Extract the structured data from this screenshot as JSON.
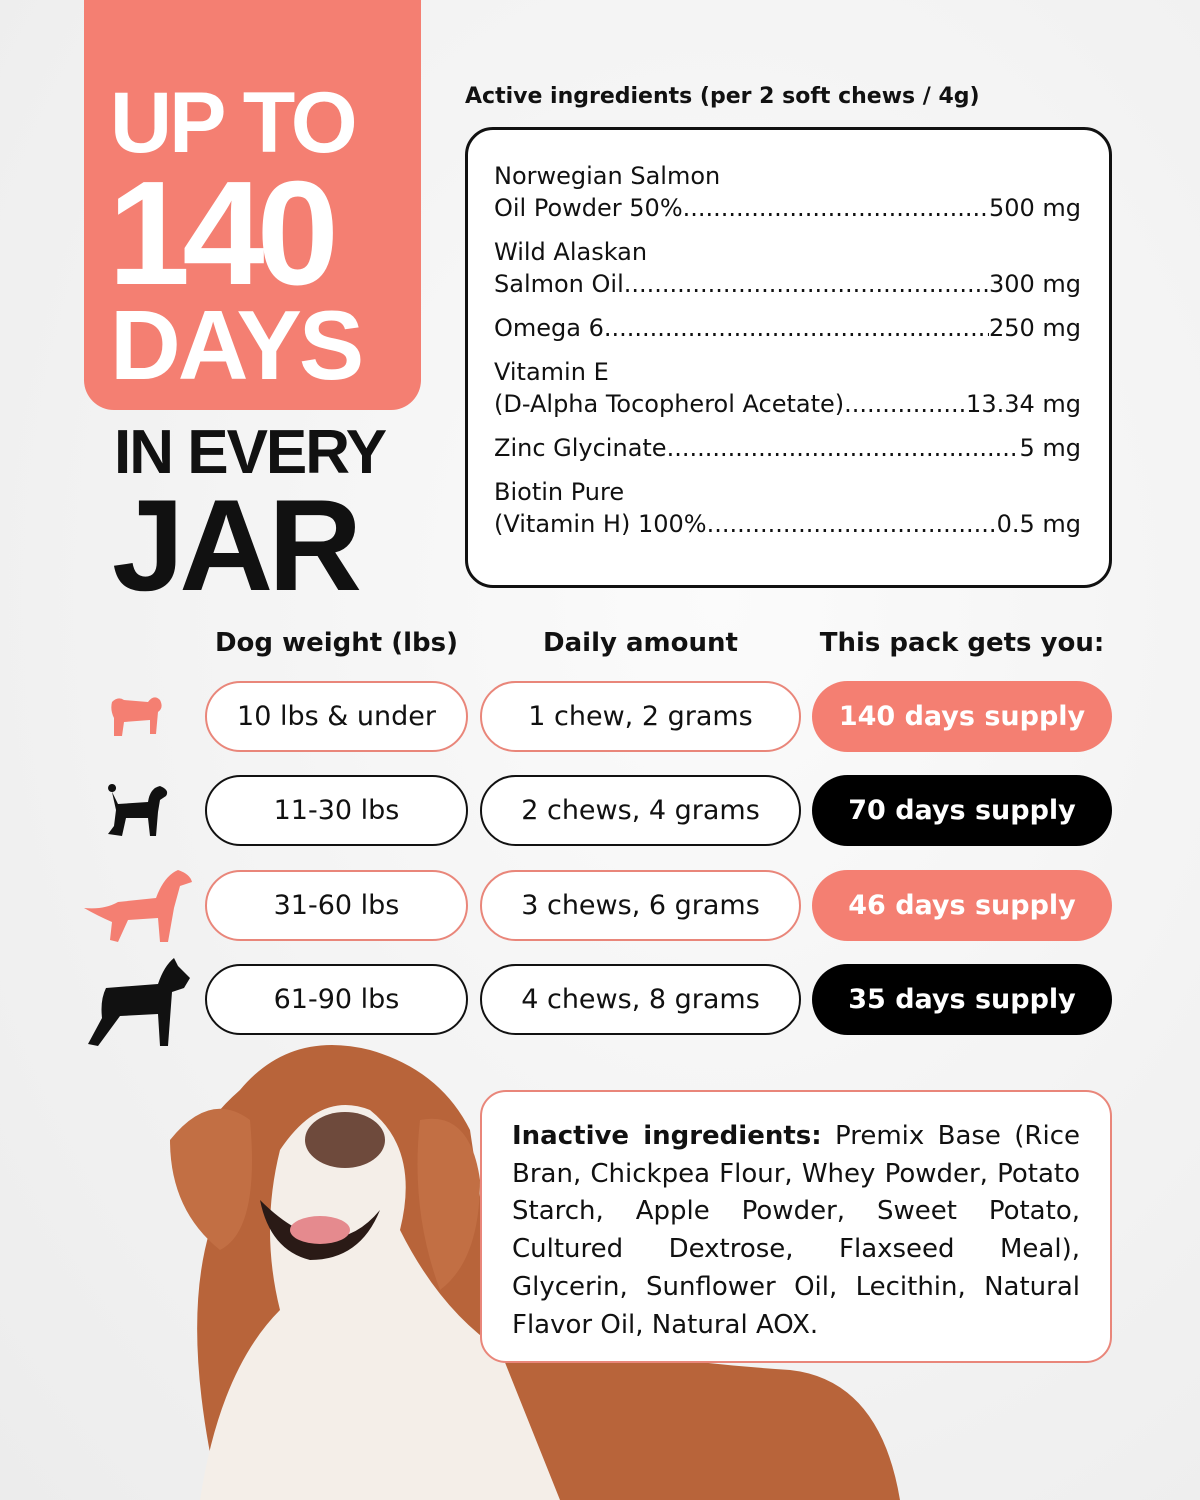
{
  "hero": {
    "line1": "UP TO",
    "number": "140",
    "line3": "DAYS",
    "line4": "IN EVERY",
    "line5": "JAR"
  },
  "active": {
    "heading": "Active ingredients (per 2 soft chews / 4g)",
    "items": [
      {
        "line1": "Norwegian Salmon",
        "line2": "Oil Powder 50%",
        "amount": "500 mg"
      },
      {
        "line1": "Wild Alaskan",
        "line2": "Salmon Oil",
        "amount": "300 mg"
      },
      {
        "line1": "",
        "line2": "Omega 6",
        "amount": "250 mg"
      },
      {
        "line1": "Vitamin E",
        "line2": "(D-Alpha Tocopherol Acetate)",
        "amount": "13.34 mg"
      },
      {
        "line1": "",
        "line2": "Zinc Glycinate",
        "amount": "5 mg"
      },
      {
        "line1": "Biotin Pure",
        "line2": "(Vitamin H) 100%",
        "amount": "0.5 mg"
      }
    ]
  },
  "table": {
    "headers": [
      "Dog weight (lbs)",
      "Daily amount",
      "This pack gets you:"
    ],
    "rows": [
      {
        "icon": "pug-silhouette-icon",
        "weight": "10 lbs & under",
        "amount": "1 chew, 2 grams",
        "supply": "140 days supply",
        "color": "#F47F72"
      },
      {
        "icon": "poodle-silhouette-icon",
        "weight": "11-30 lbs",
        "amount": "2 chews, 4 grams",
        "supply": "70 days supply",
        "color": "#000000"
      },
      {
        "icon": "setter-silhouette-icon",
        "weight": "31-60 lbs",
        "amount": "3 chews, 6 grams",
        "supply": "46 days supply",
        "color": "#F47F72"
      },
      {
        "icon": "boxer-silhouette-icon",
        "weight": "61-90 lbs",
        "amount": "4 chews, 8 grams",
        "supply": "35 days supply",
        "color": "#000000"
      }
    ]
  },
  "inactive": {
    "label": "Inactive ingredients:",
    "text": " Premix Base (Rice Bran, Chickpea Flour, Whey Powder, Potato Starch, Apple Powder, Sweet Potato, Cultured Dextrose, Flaxseed Meal), Glycerin, Sunflower Oil, Lecithin, Natural Flavor Oil, Natural AOX."
  },
  "colors": {
    "accent": "#F47F72",
    "dark": "#000000"
  }
}
